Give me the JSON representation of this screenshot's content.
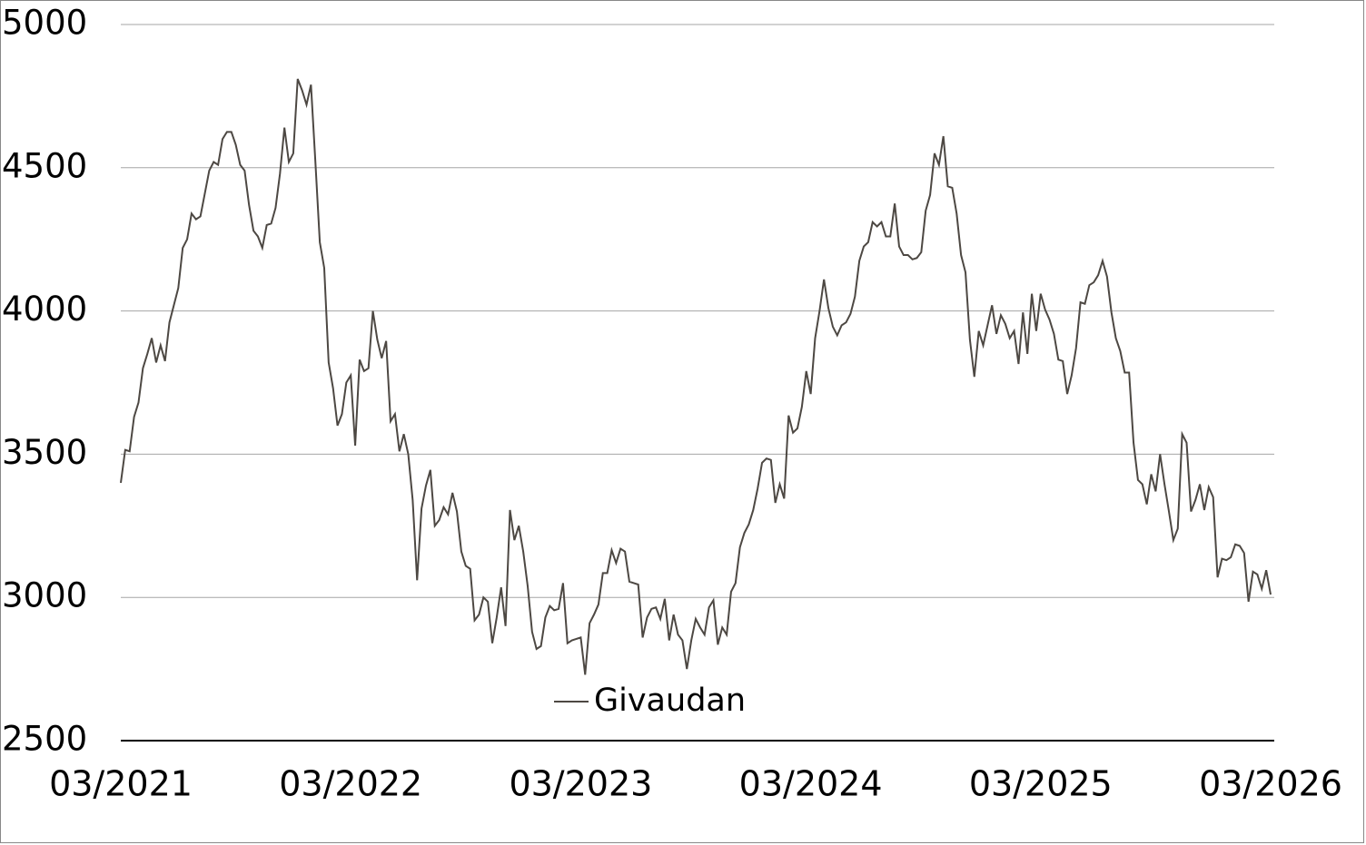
{
  "chart_data": {
    "type": "line",
    "categories": [
      "03/2021",
      null,
      null,
      null,
      null,
      null,
      null,
      null,
      null,
      null,
      null,
      null,
      null,
      null,
      null,
      null,
      null,
      null,
      null,
      null,
      null,
      null,
      null,
      null,
      null,
      null,
      null,
      null,
      null,
      null,
      null,
      null,
      null,
      null,
      null,
      null,
      null,
      null,
      null,
      null,
      null,
      null,
      null,
      null,
      null,
      null,
      null,
      null,
      null,
      null,
      null,
      null,
      "03/2022",
      null,
      null,
      null,
      null,
      null,
      null,
      null,
      null,
      null,
      null,
      null,
      null,
      null,
      null,
      null,
      null,
      null,
      null,
      null,
      null,
      null,
      null,
      null,
      null,
      null,
      null,
      null,
      null,
      null,
      null,
      null,
      null,
      null,
      null,
      null,
      null,
      null,
      null,
      null,
      null,
      null,
      null,
      null,
      null,
      null,
      null,
      null,
      null,
      null,
      null,
      null,
      "03/2023",
      null,
      null,
      null,
      null,
      null,
      null,
      null,
      null,
      null,
      null,
      null,
      null,
      null,
      null,
      null,
      null,
      null,
      null,
      null,
      null,
      null,
      null,
      null,
      null,
      null,
      null,
      null,
      null,
      null,
      null,
      null,
      null,
      null,
      null,
      null,
      null,
      null,
      null,
      null,
      null,
      null,
      null,
      null,
      null,
      null,
      null,
      null,
      null,
      null,
      null,
      null,
      "03/2024",
      null,
      null,
      null,
      null,
      null,
      null,
      null,
      null,
      null,
      null,
      null,
      null,
      null,
      null,
      null,
      null,
      null,
      null,
      null,
      null,
      null,
      null,
      null,
      null,
      null,
      null,
      null,
      null,
      null,
      null,
      null,
      null,
      null,
      null,
      null,
      null,
      null,
      null,
      null,
      null,
      null,
      null,
      null,
      null,
      null,
      null,
      null,
      null,
      null,
      null,
      null,
      "03/2025",
      null,
      null,
      null,
      null,
      null,
      null,
      null,
      null,
      null,
      null,
      null,
      null,
      null,
      null,
      null,
      null,
      null,
      null,
      null,
      null,
      null,
      null,
      null,
      null,
      null,
      null,
      null,
      null,
      null,
      null,
      null,
      null,
      null,
      null,
      null,
      null,
      null,
      null,
      null,
      null,
      null,
      null,
      null,
      null,
      null,
      null,
      null,
      null,
      null,
      null,
      null,
      "03/2026"
    ],
    "series": [
      {
        "name": "Givaudan",
        "color": "#4d4843",
        "values": [
          3400,
          3515,
          3510,
          3630,
          3680,
          3800,
          3850,
          3905,
          3820,
          3880,
          3825,
          3960,
          4020,
          4080,
          4220,
          4250,
          4340,
          4320,
          4330,
          4410,
          4490,
          4520,
          4510,
          4600,
          4625,
          4625,
          4580,
          4510,
          4490,
          4370,
          4280,
          4260,
          4220,
          4300,
          4305,
          4360,
          4480,
          4640,
          4520,
          4550,
          4810,
          4770,
          4720,
          4790,
          4520,
          4240,
          4150,
          3820,
          3730,
          3600,
          3640,
          3750,
          3775,
          3530,
          3830,
          3790,
          3800,
          4000,
          3900,
          3835,
          3895,
          3615,
          3640,
          3510,
          3570,
          3500,
          3340,
          3060,
          3310,
          3390,
          3445,
          3250,
          3270,
          3315,
          3290,
          3365,
          3300,
          3160,
          3110,
          3100,
          2920,
          2940,
          3000,
          2985,
          2840,
          2930,
          3035,
          2900,
          3305,
          3200,
          3250,
          3160,
          3040,
          2880,
          2820,
          2830,
          2930,
          2970,
          2955,
          2960,
          3050,
          2840,
          2850,
          2855,
          2860,
          2730,
          2910,
          2940,
          2975,
          3085,
          3085,
          3165,
          3120,
          3170,
          3160,
          3055,
          3050,
          3045,
          2860,
          2930,
          2960,
          2965,
          2925,
          2995,
          2850,
          2940,
          2870,
          2850,
          2750,
          2850,
          2925,
          2895,
          2870,
          2965,
          2990,
          2835,
          2895,
          2870,
          3020,
          3050,
          3175,
          3225,
          3255,
          3305,
          3380,
          3470,
          3485,
          3480,
          3330,
          3395,
          3345,
          3635,
          3575,
          3590,
          3665,
          3790,
          3710,
          3905,
          4000,
          4110,
          4010,
          3945,
          3915,
          3950,
          3960,
          3990,
          4050,
          4175,
          4225,
          4240,
          4310,
          4295,
          4310,
          4260,
          4260,
          4375,
          4225,
          4195,
          4195,
          4180,
          4185,
          4205,
          4350,
          4405,
          4550,
          4510,
          4610,
          4435,
          4430,
          4340,
          4195,
          4135,
          3900,
          3770,
          3930,
          3880,
          3950,
          4020,
          3920,
          3985,
          3955,
          3905,
          3930,
          3815,
          3995,
          3850,
          4060,
          3930,
          4060,
          4005,
          3970,
          3920,
          3830,
          3825,
          3710,
          3775,
          3870,
          4030,
          4025,
          4090,
          4100,
          4125,
          4175,
          4120,
          3995,
          3905,
          3860,
          3785,
          3785,
          3540,
          3410,
          3395,
          3325,
          3430,
          3370,
          3500,
          3395,
          3300,
          3200,
          3240,
          3570,
          3540,
          3300,
          3340,
          3395,
          3305,
          3385,
          3350,
          3070,
          3135,
          3130,
          3140,
          3185,
          3180,
          3155,
          2985,
          3090,
          3080,
          3030,
          3095,
          3010
        ]
      }
    ],
    "ylim": [
      2500,
      5000
    ],
    "yticks": [
      2500,
      3000,
      3500,
      4000,
      4500,
      5000
    ],
    "grid": true,
    "legend": "bottom-center"
  }
}
